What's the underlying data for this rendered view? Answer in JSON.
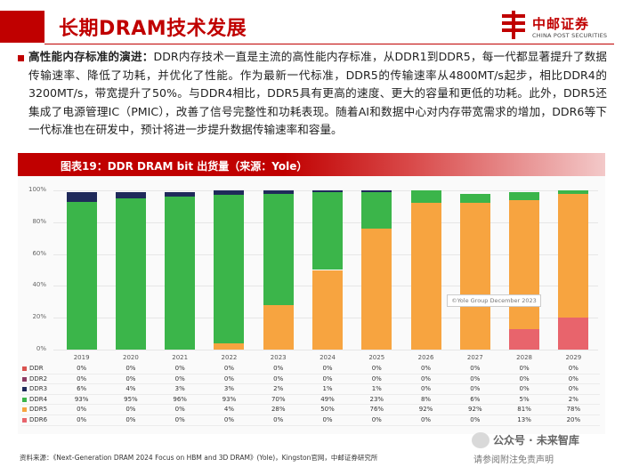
{
  "header": {
    "title": "长期DRAM技术发展",
    "logo_cn": "中邮证券",
    "logo_en": "CHINA POST SECURITIES"
  },
  "paragraph": {
    "lead": "高性能内存标准的演进：",
    "body": "DDR内存技术一直是主流的高性能内存标准，从DDR1到DDR5，每一代都显著提升了数据传输速率、降低了功耗，并优化了性能。作为最新一代标准，DDR5的传输速率从4800MT/s起步，相比DDR4的3200MT/s，带宽提升了50%。与DDR4相比，DDR5具有更高的速度、更大的容量和更低的功耗。此外，DDR5还集成了电源管理IC（PMIC），改善了信号完整性和功耗表现。随着AI和数据中心对内存带宽需求的增加，DDR6等下一代标准也在研发中，预计将进一步提升数据传输速率和容量。"
  },
  "figure": {
    "title": "图表19：DDR DRAM bit 出货量（来源：Yole）",
    "watermark": "©Yole Group December 2023"
  },
  "colors": {
    "DDR": "#d9534f",
    "DDR2": "#8b3a62",
    "DDR3": "#1f2a5a",
    "DDR4": "#3bb54a",
    "DDR5": "#f7a440",
    "DDR6": "#e8646c",
    "brand": "#c00000"
  },
  "chart_data": {
    "type": "bar",
    "stacked": true,
    "categories": [
      "2019",
      "2020",
      "2021",
      "2022",
      "2023",
      "2024",
      "2025",
      "2026",
      "2027",
      "2028",
      "2029"
    ],
    "ylim": [
      0,
      100
    ],
    "y_ticks": [
      "0%",
      "20%",
      "40%",
      "60%",
      "80%",
      "100%"
    ],
    "series": [
      {
        "name": "DDR",
        "values": [
          0,
          0,
          0,
          0,
          0,
          0,
          0,
          0,
          0,
          0,
          0
        ]
      },
      {
        "name": "DDR2",
        "values": [
          0,
          0,
          0,
          0,
          0,
          0,
          0,
          0,
          0,
          0,
          0
        ]
      },
      {
        "name": "DDR6",
        "values": [
          0,
          0,
          0,
          0,
          0,
          0,
          0,
          0,
          0,
          13,
          20
        ]
      },
      {
        "name": "DDR5",
        "values": [
          0,
          0,
          0,
          4,
          28,
          50,
          76,
          92,
          92,
          81,
          78
        ]
      },
      {
        "name": "DDR4",
        "values": [
          93,
          95,
          96,
          93,
          70,
          49,
          23,
          8,
          6,
          5,
          2
        ]
      },
      {
        "name": "DDR3",
        "values": [
          6,
          4,
          3,
          3,
          2,
          1,
          1,
          0,
          0,
          0,
          0
        ]
      }
    ],
    "table_rows": [
      {
        "name": "DDR",
        "cells": [
          "0%",
          "0%",
          "0%",
          "0%",
          "0%",
          "0%",
          "0%",
          "0%",
          "0%",
          "0%",
          "0%"
        ]
      },
      {
        "name": "DDR2",
        "cells": [
          "0%",
          "0%",
          "0%",
          "0%",
          "0%",
          "0%",
          "0%",
          "0%",
          "0%",
          "0%",
          "0%"
        ]
      },
      {
        "name": "DDR3",
        "cells": [
          "6%",
          "4%",
          "3%",
          "3%",
          "2%",
          "1%",
          "1%",
          "0%",
          "0%",
          "0%",
          "0%"
        ]
      },
      {
        "name": "DDR4",
        "cells": [
          "93%",
          "95%",
          "96%",
          "93%",
          "70%",
          "49%",
          "23%",
          "8%",
          "6%",
          "5%",
          "2%"
        ]
      },
      {
        "name": "DDR5",
        "cells": [
          "0%",
          "0%",
          "0%",
          "4%",
          "28%",
          "50%",
          "76%",
          "92%",
          "92%",
          "81%",
          "78%"
        ]
      },
      {
        "name": "DDR6",
        "cells": [
          "0%",
          "0%",
          "0%",
          "0%",
          "0%",
          "0%",
          "0%",
          "0%",
          "0%",
          "13%",
          "20%"
        ]
      }
    ]
  },
  "footer": {
    "source": "资料来源：《Next-Generation DRAM 2024 Focus on HBM and 3D DRAM》(Yole)，Kingston官网，中邮证券研究所",
    "watermark_line1": "公众号 · 未来智库",
    "watermark_line2": "请参阅附注免责声明"
  }
}
